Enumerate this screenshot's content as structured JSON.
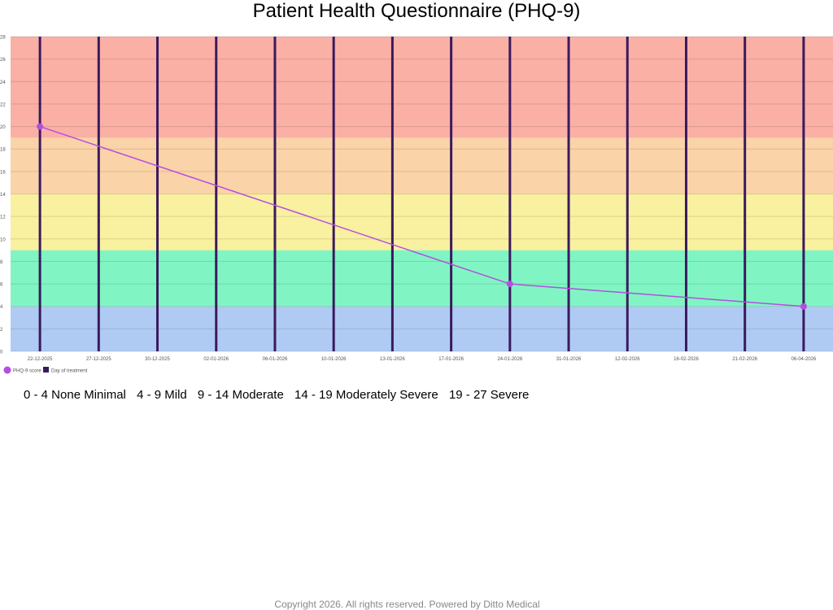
{
  "chart_data": {
    "type": "line",
    "title": "Patient Health Questionnaire (PHQ-9)",
    "ylim": [
      0,
      28
    ],
    "y_ticks": [
      "0",
      "2",
      "4",
      "6",
      "8",
      "10",
      "12",
      "14",
      "16",
      "18",
      "20",
      "22",
      "24",
      "26",
      "28"
    ],
    "categories": [
      "22-12-2025",
      "27-12-2025",
      "30-12-2025",
      "02-01-2026",
      "06-01-2026",
      "10-01-2026",
      "13-01-2026",
      "17-01-2026",
      "24-01-2026",
      "31-01-2026",
      "12-02-2026",
      "16-02-2026",
      "21-02-2026",
      "06-04-2026"
    ],
    "series": [
      {
        "name": "PHQ-9 score",
        "color": "#b44ee0",
        "points": [
          {
            "x": "22-12-2025",
            "y": 20
          },
          {
            "x": "24-01-2026",
            "y": 6
          },
          {
            "x": "06-04-2026",
            "y": 4
          }
        ]
      },
      {
        "name": "Day of treatment",
        "type": "bar",
        "color": "#3a1a5e",
        "x": [
          "22-12-2025",
          "27-12-2025",
          "30-12-2025",
          "02-01-2026",
          "06-01-2026",
          "10-01-2026",
          "13-01-2026",
          "17-01-2026",
          "24-01-2026",
          "31-01-2026",
          "12-02-2026",
          "16-02-2026",
          "21-02-2026",
          "06-04-2026"
        ]
      }
    ],
    "bands": [
      {
        "from": 0,
        "to": 4,
        "color": "#b0cbf3"
      },
      {
        "from": 4,
        "to": 9,
        "color": "#80f5c3"
      },
      {
        "from": 9,
        "to": 14,
        "color": "#f9f0a0"
      },
      {
        "from": 14,
        "to": 19,
        "color": "#fbd3a8"
      },
      {
        "from": 19,
        "to": 28,
        "color": "#fab0a5"
      }
    ],
    "grid": true,
    "legend": "bottom-left"
  },
  "severity_key": [
    "0 - 4 None Minimal",
    "4 - 9 Mild",
    "9 - 14 Moderate",
    "14 - 19 Moderately Severe",
    "19 - 27 Severe"
  ],
  "footer": "Copyright  2026. All rights reserved. Powered by Ditto Medical"
}
